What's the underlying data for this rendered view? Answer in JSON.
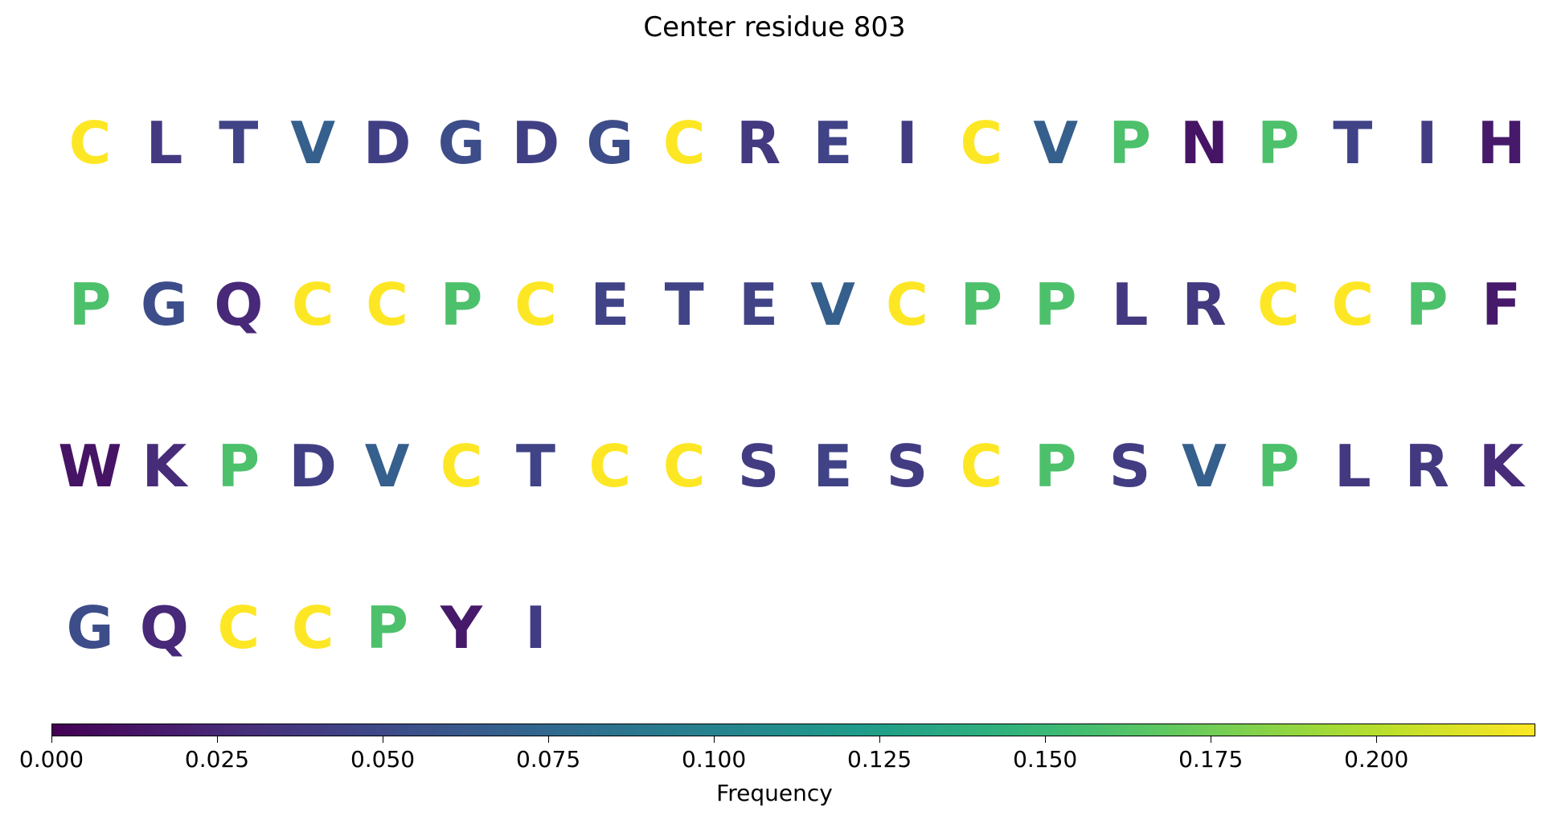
{
  "title": "Center residue 803",
  "colorbar": {
    "label": "Frequency",
    "colormap": "viridis",
    "range": [
      0,
      0.224
    ],
    "tick_labels": [
      "0.000",
      "0.025",
      "0.050",
      "0.075",
      "0.100",
      "0.125",
      "0.150",
      "0.175",
      "0.200"
    ]
  },
  "chart_data": {
    "type": "heatmap",
    "title": "Center residue 803",
    "colorbar_label": "Frequency",
    "value_range": [
      0,
      0.224
    ],
    "rows": [
      {
        "residues": [
          "C",
          "L",
          "T",
          "V",
          "D",
          "G",
          "D",
          "G",
          "C",
          "R",
          "E",
          "I",
          "C",
          "V",
          "P",
          "N",
          "P",
          "T",
          "I",
          "H"
        ],
        "values": [
          0.224,
          0.037,
          0.045,
          0.067,
          0.042,
          0.052,
          0.042,
          0.052,
          0.224,
          0.037,
          0.045,
          0.04,
          0.224,
          0.067,
          0.16,
          0.012,
          0.16,
          0.045,
          0.04,
          0.015
        ]
      },
      {
        "residues": [
          "P",
          "G",
          "Q",
          "C",
          "C",
          "P",
          "C",
          "E",
          "T",
          "E",
          "V",
          "C",
          "P",
          "P",
          "L",
          "R",
          "C",
          "C",
          "P",
          "F"
        ],
        "values": [
          0.16,
          0.052,
          0.025,
          0.224,
          0.224,
          0.16,
          0.224,
          0.045,
          0.045,
          0.045,
          0.067,
          0.224,
          0.16,
          0.16,
          0.037,
          0.037,
          0.224,
          0.224,
          0.16,
          0.015
        ]
      },
      {
        "residues": [
          "W",
          "K",
          "P",
          "D",
          "V",
          "C",
          "T",
          "C",
          "C",
          "S",
          "E",
          "S",
          "C",
          "P",
          "S",
          "V",
          "P",
          "L",
          "R",
          "K"
        ],
        "values": [
          0.012,
          0.028,
          0.16,
          0.042,
          0.067,
          0.224,
          0.045,
          0.224,
          0.224,
          0.04,
          0.045,
          0.04,
          0.224,
          0.16,
          0.04,
          0.067,
          0.16,
          0.037,
          0.037,
          0.028
        ]
      },
      {
        "residues": [
          "G",
          "Q",
          "C",
          "C",
          "P",
          "Y",
          "I"
        ],
        "values": [
          0.052,
          0.025,
          0.224,
          0.224,
          0.16,
          0.015,
          0.04
        ]
      }
    ]
  }
}
